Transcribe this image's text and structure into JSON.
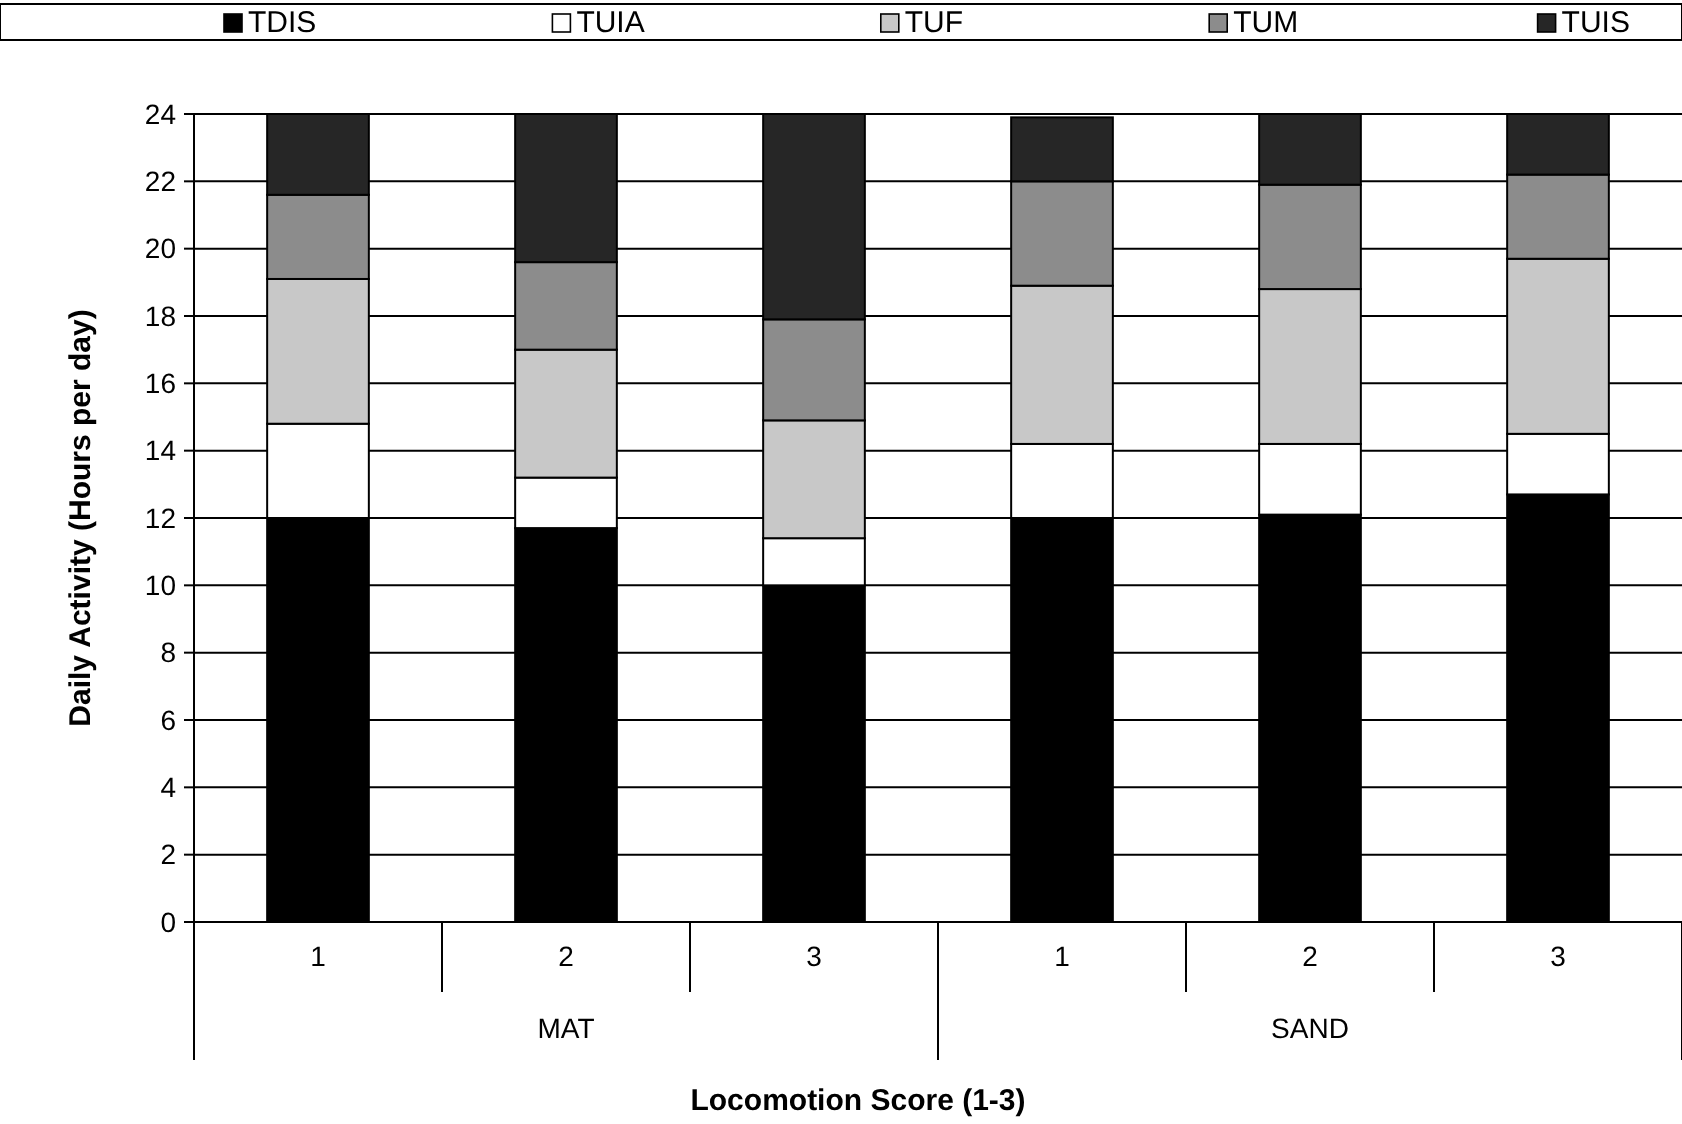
{
  "chart_data": {
    "type": "bar",
    "stacked": true,
    "xlabel": "Locomotion Score (1-3)",
    "ylabel": "Daily Activity (Hours per day)",
    "categories": [
      "1",
      "2",
      "3",
      "1",
      "2",
      "3"
    ],
    "annotations": [
      "MAT",
      "SAND"
    ],
    "series": [
      {
        "name": "TDIS",
        "color": "#000000",
        "values": [
          12,
          11.7,
          10,
          12,
          12.1,
          12.7
        ]
      },
      {
        "name": "TUIA",
        "color": "#ffffff",
        "values": [
          2.8,
          1.5,
          1.4,
          2.2,
          2.1,
          1.8
        ]
      },
      {
        "name": "TUF",
        "color": "#c8c8c8",
        "values": [
          4.3,
          3.8,
          3.5,
          4.7,
          4.6,
          5.2
        ]
      },
      {
        "name": "TUM",
        "color": "#8c8c8c",
        "values": [
          2.5,
          2.6,
          3.0,
          3.1,
          3.1,
          2.5
        ]
      },
      {
        "name": "TUIS",
        "color": "#262626",
        "values": [
          2.4,
          4.4,
          6.1,
          1.9,
          2.1,
          1.8
        ]
      }
    ],
    "ylim": [
      0,
      24
    ],
    "yticks": [
      0,
      2,
      4,
      6,
      8,
      10,
      12,
      14,
      16,
      18,
      20,
      22,
      24
    ],
    "grid": "y",
    "legend": "top"
  }
}
